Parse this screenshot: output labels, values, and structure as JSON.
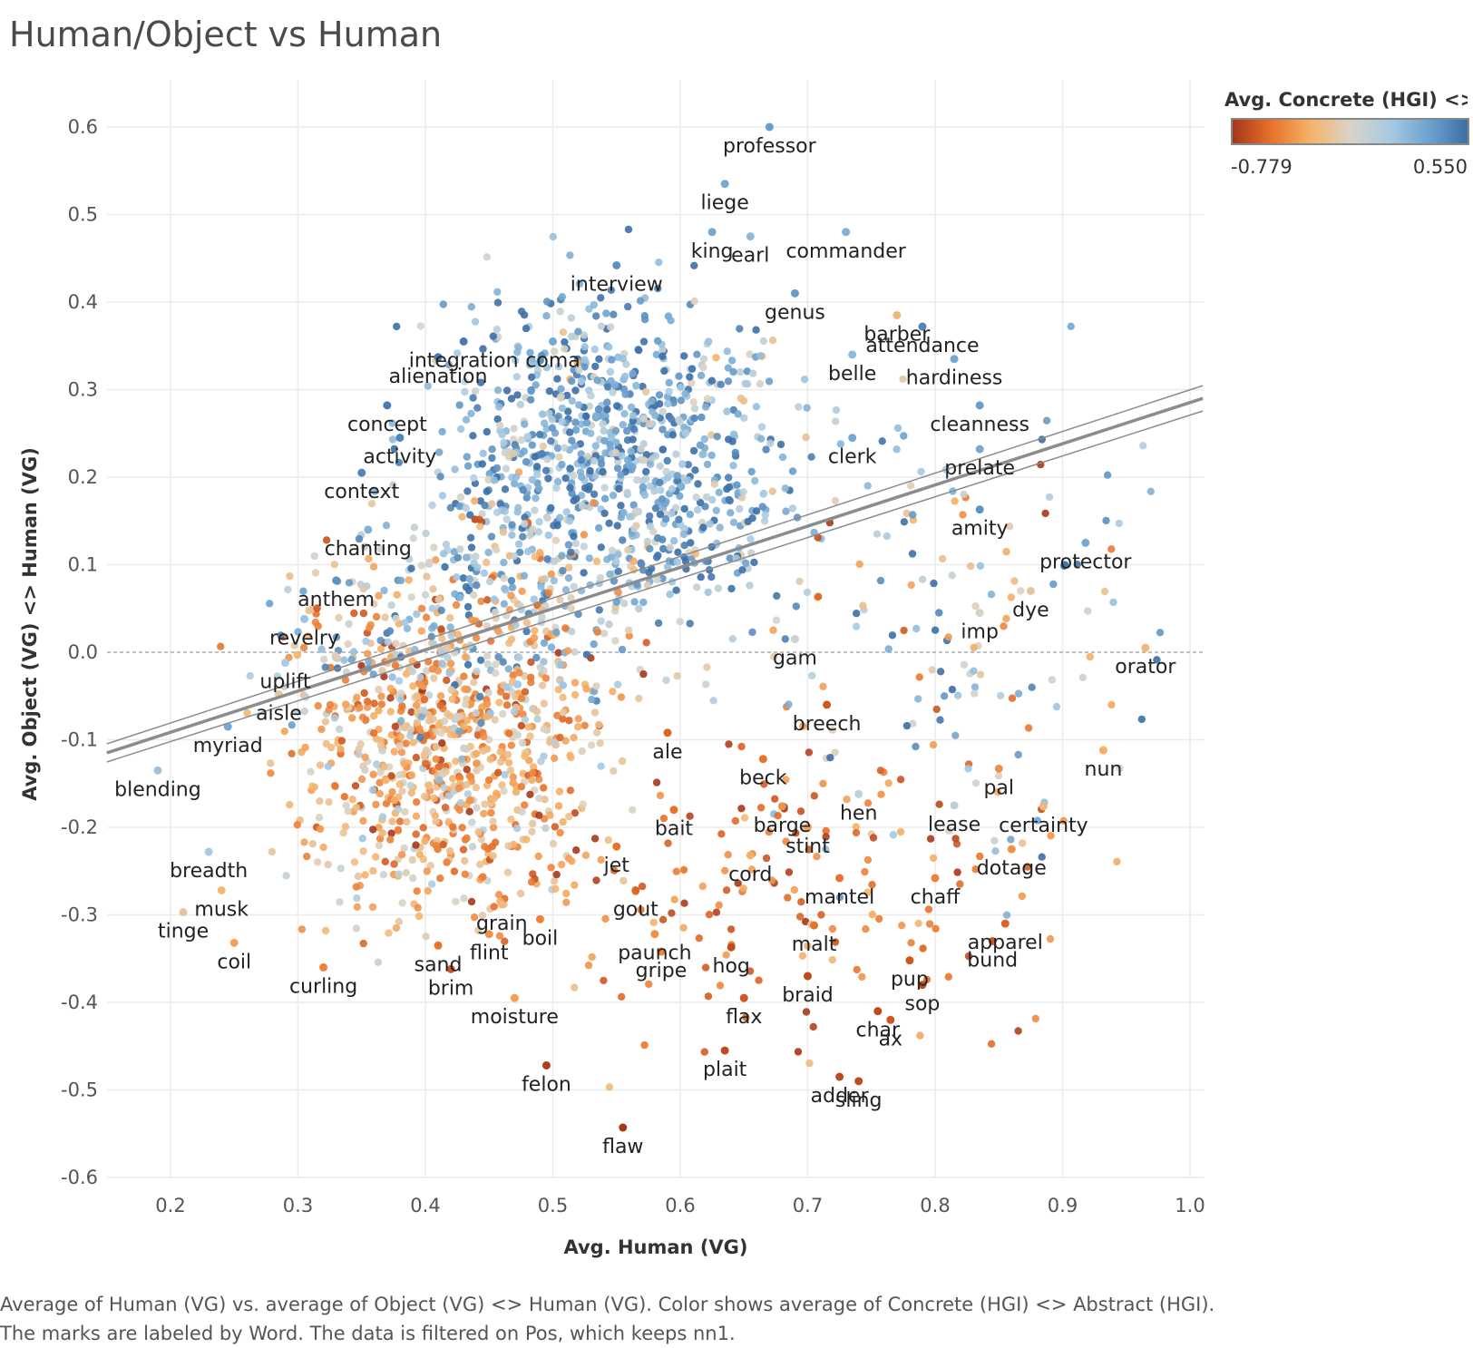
{
  "title": "Human/Object vs Human",
  "caption": "Average of Human (VG) vs. average of Object (VG) <> Human (VG).  Color shows average of Concrete (HGI) <> Abstract (HGI).  The marks are labeled by Word. The data is filtered on Pos, which keeps nn1.",
  "legend": {
    "title": "Avg. Concrete (HGI) <> ..",
    "min_label": "-0.779",
    "max_label": "0.550",
    "colors": [
      "#a6371a",
      "#e8722a",
      "#f6b36a",
      "#d9d3c6",
      "#a8cbe3",
      "#6da3cf",
      "#3c6fa6"
    ]
  },
  "chart_data": {
    "type": "scatter",
    "xlabel": "Avg. Human (VG)",
    "ylabel": "Avg. Object (VG) <> Human (VG)",
    "xlim": [
      0.15,
      1.01
    ],
    "ylim": [
      -0.6,
      0.6
    ],
    "x_ticks": [
      "0.2",
      "0.3",
      "0.4",
      "0.5",
      "0.6",
      "0.7",
      "0.8",
      "0.9",
      "1.0"
    ],
    "y_ticks": [
      "0.6",
      "0.5",
      "0.4",
      "0.3",
      "0.2",
      "0.1",
      "0.0",
      "-0.1",
      "-0.2",
      "-0.3",
      "-0.4",
      "-0.5",
      "-0.6"
    ],
    "grid": true,
    "color_scale": {
      "min": -0.779,
      "max": 0.55
    },
    "trend_line": {
      "x": [
        0.15,
        1.01
      ],
      "y": [
        -0.115,
        0.29
      ]
    },
    "labeled_points": [
      {
        "word": "professor",
        "x": 0.67,
        "y": 0.6,
        "c": 0.35
      },
      {
        "word": "liege",
        "x": 0.635,
        "y": 0.535,
        "c": 0.3
      },
      {
        "word": "king",
        "x": 0.625,
        "y": 0.48,
        "c": 0.3
      },
      {
        "word": "earl",
        "x": 0.655,
        "y": 0.475,
        "c": 0.2
      },
      {
        "word": "commander",
        "x": 0.73,
        "y": 0.48,
        "c": 0.25
      },
      {
        "word": "interview",
        "x": 0.55,
        "y": 0.442,
        "c": 0.4
      },
      {
        "word": "genus",
        "x": 0.69,
        "y": 0.41,
        "c": 0.35
      },
      {
        "word": "barber",
        "x": 0.77,
        "y": 0.385,
        "c": -0.3
      },
      {
        "word": "integration",
        "x": 0.43,
        "y": 0.355,
        "c": 0.5
      },
      {
        "word": "coma",
        "x": 0.5,
        "y": 0.355,
        "c": 0.3
      },
      {
        "word": "attendance",
        "x": 0.79,
        "y": 0.372,
        "c": 0.45
      },
      {
        "word": "alienation",
        "x": 0.41,
        "y": 0.337,
        "c": 0.5
      },
      {
        "word": "belle",
        "x": 0.735,
        "y": 0.34,
        "c": 0.2
      },
      {
        "word": "hardiness",
        "x": 0.815,
        "y": 0.335,
        "c": 0.3
      },
      {
        "word": "concept",
        "x": 0.37,
        "y": 0.282,
        "c": 0.5
      },
      {
        "word": "cleanness",
        "x": 0.835,
        "y": 0.282,
        "c": 0.35
      },
      {
        "word": "activity",
        "x": 0.38,
        "y": 0.245,
        "c": 0.45
      },
      {
        "word": "clerk",
        "x": 0.735,
        "y": 0.245,
        "c": 0.3
      },
      {
        "word": "prelate",
        "x": 0.835,
        "y": 0.232,
        "c": 0.3
      },
      {
        "word": "context",
        "x": 0.35,
        "y": 0.205,
        "c": 0.45
      },
      {
        "word": "amity",
        "x": 0.835,
        "y": 0.163,
        "c": 0.4
      },
      {
        "word": "chanting",
        "x": 0.355,
        "y": 0.14,
        "c": 0.25
      },
      {
        "word": "protector",
        "x": 0.918,
        "y": 0.125,
        "c": 0.3
      },
      {
        "word": "anthem",
        "x": 0.33,
        "y": 0.082,
        "c": 0.4
      },
      {
        "word": "dye",
        "x": 0.875,
        "y": 0.07,
        "c": -0.2
      },
      {
        "word": "imp",
        "x": 0.835,
        "y": 0.045,
        "c": -0.1
      },
      {
        "word": "revelry",
        "x": 0.305,
        "y": 0.038,
        "c": 0.15
      },
      {
        "word": "gam",
        "x": 0.69,
        "y": 0.015,
        "c": -0.05
      },
      {
        "word": "orator",
        "x": 0.965,
        "y": 0.005,
        "c": -0.3
      },
      {
        "word": "uplift",
        "x": 0.29,
        "y": -0.012,
        "c": 0.1
      },
      {
        "word": "aisle",
        "x": 0.285,
        "y": -0.048,
        "c": -0.2
      },
      {
        "word": "myriad",
        "x": 0.245,
        "y": -0.085,
        "c": 0.3
      },
      {
        "word": "ale",
        "x": 0.59,
        "y": -0.092,
        "c": -0.6
      },
      {
        "word": "breech",
        "x": 0.715,
        "y": -0.06,
        "c": -0.65
      },
      {
        "word": "beck",
        "x": 0.665,
        "y": -0.122,
        "c": -0.55
      },
      {
        "word": "nun",
        "x": 0.932,
        "y": -0.112,
        "c": -0.35
      },
      {
        "word": "pal",
        "x": 0.85,
        "y": -0.133,
        "c": -0.45
      },
      {
        "word": "blending",
        "x": 0.19,
        "y": -0.135,
        "c": 0.15
      },
      {
        "word": "hen",
        "x": 0.74,
        "y": -0.162,
        "c": 0.0
      },
      {
        "word": "barge",
        "x": 0.68,
        "y": -0.176,
        "c": -0.45
      },
      {
        "word": "lease",
        "x": 0.815,
        "y": -0.175,
        "c": 0.0
      },
      {
        "word": "certainty",
        "x": 0.885,
        "y": -0.176,
        "c": -0.3
      },
      {
        "word": "bait",
        "x": 0.595,
        "y": -0.18,
        "c": -0.55
      },
      {
        "word": "stint",
        "x": 0.7,
        "y": -0.2,
        "c": -0.4
      },
      {
        "word": "breadth",
        "x": 0.23,
        "y": -0.228,
        "c": 0.1
      },
      {
        "word": "jet",
        "x": 0.55,
        "y": -0.222,
        "c": -0.55
      },
      {
        "word": "cord",
        "x": 0.655,
        "y": -0.232,
        "c": -0.35
      },
      {
        "word": "dotage",
        "x": 0.86,
        "y": -0.225,
        "c": -0.45
      },
      {
        "word": "chaff",
        "x": 0.8,
        "y": -0.258,
        "c": -0.5
      },
      {
        "word": "musk",
        "x": 0.24,
        "y": -0.272,
        "c": -0.3
      },
      {
        "word": "gout",
        "x": 0.565,
        "y": -0.272,
        "c": -0.6
      },
      {
        "word": "grain",
        "x": 0.46,
        "y": -0.288,
        "c": -0.3
      },
      {
        "word": "mantel",
        "x": 0.725,
        "y": -0.258,
        "c": -0.55
      },
      {
        "word": "apparel",
        "x": 0.855,
        "y": -0.31,
        "c": -0.6
      },
      {
        "word": "tinge",
        "x": 0.21,
        "y": -0.297,
        "c": -0.2
      },
      {
        "word": "malt",
        "x": 0.705,
        "y": -0.312,
        "c": -0.55
      },
      {
        "word": "paunch",
        "x": 0.58,
        "y": -0.322,
        "c": -0.45
      },
      {
        "word": "boil",
        "x": 0.49,
        "y": -0.305,
        "c": -0.5
      },
      {
        "word": "bund",
        "x": 0.845,
        "y": -0.33,
        "c": -0.65
      },
      {
        "word": "sand",
        "x": 0.41,
        "y": -0.335,
        "c": -0.55
      },
      {
        "word": "flint",
        "x": 0.45,
        "y": -0.322,
        "c": -0.45
      },
      {
        "word": "coil",
        "x": 0.25,
        "y": -0.332,
        "c": -0.4
      },
      {
        "word": "pup",
        "x": 0.78,
        "y": -0.352,
        "c": -0.65
      },
      {
        "word": "gripe",
        "x": 0.585,
        "y": -0.342,
        "c": -0.5
      },
      {
        "word": "hog",
        "x": 0.64,
        "y": -0.337,
        "c": -0.7
      },
      {
        "word": "braid",
        "x": 0.7,
        "y": -0.37,
        "c": -0.7
      },
      {
        "word": "curling",
        "x": 0.32,
        "y": -0.36,
        "c": -0.5
      },
      {
        "word": "brim",
        "x": 0.42,
        "y": -0.362,
        "c": -0.65
      },
      {
        "word": "sop",
        "x": 0.79,
        "y": -0.38,
        "c": -0.7
      },
      {
        "word": "moisture",
        "x": 0.47,
        "y": -0.395,
        "c": -0.4
      },
      {
        "word": "flax",
        "x": 0.65,
        "y": -0.395,
        "c": -0.65
      },
      {
        "word": "char",
        "x": 0.755,
        "y": -0.41,
        "c": -0.7
      },
      {
        "word": "ax",
        "x": 0.765,
        "y": -0.42,
        "c": -0.65
      },
      {
        "word": "plait",
        "x": 0.635,
        "y": -0.455,
        "c": -0.7
      },
      {
        "word": "felon",
        "x": 0.495,
        "y": -0.472,
        "c": -0.75
      },
      {
        "word": "adder",
        "x": 0.725,
        "y": -0.485,
        "c": -0.7
      },
      {
        "word": "sling",
        "x": 0.74,
        "y": -0.49,
        "c": -0.7
      },
      {
        "word": "flaw",
        "x": 0.555,
        "y": -0.543,
        "c": -0.779
      }
    ]
  }
}
